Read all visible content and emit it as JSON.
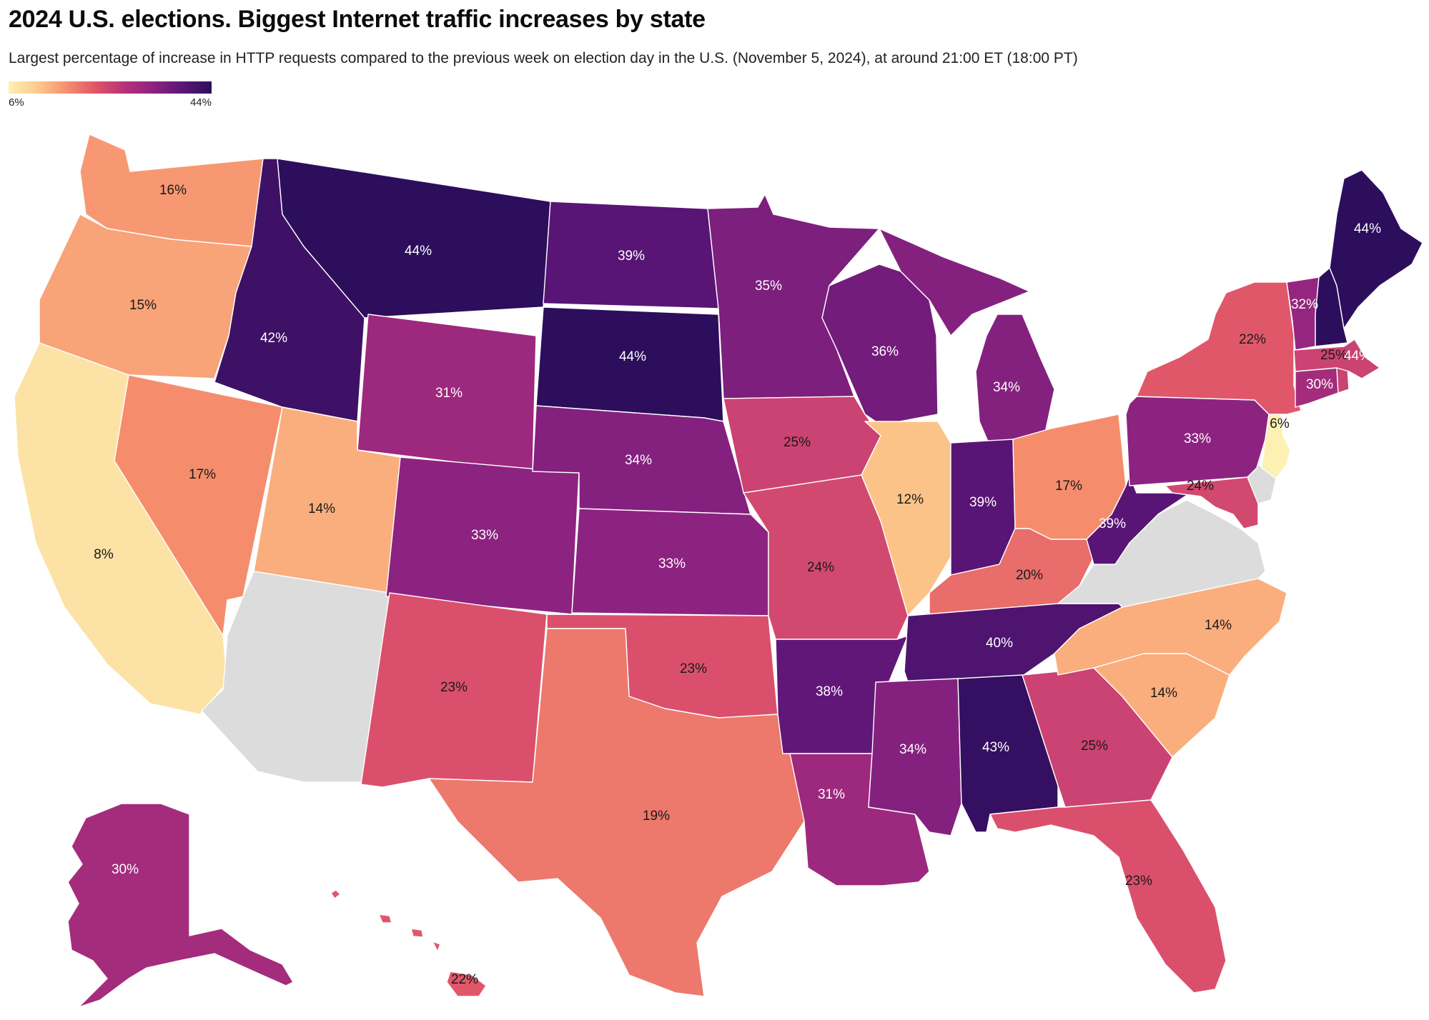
{
  "title": "2024 U.S. elections. Biggest Internet traffic increases by state",
  "subtitle": "Largest percentage of increase in HTTP requests compared to the previous week on election day in the U.S. (November 5, 2024), at around 21:00 ET (18:00 PT)",
  "legend": {
    "min_label": "6%",
    "max_label": "44%",
    "min_value": 6,
    "max_value": 44
  },
  "colors": {
    "no_data": "#dcdcdc",
    "scale": [
      "#fcf1b3",
      "#fdc98c",
      "#f68f6d",
      "#e0546a",
      "#b53279",
      "#8c2380",
      "#5c1677",
      "#2c0e5c"
    ]
  },
  "chart_data": {
    "type": "choropleth",
    "title": "2024 U.S. elections. Biggest Internet traffic increases by state",
    "unit": "%",
    "range": [
      6,
      44
    ],
    "states": [
      {
        "code": "WA",
        "value": 16,
        "label": "16%"
      },
      {
        "code": "OR",
        "value": 15,
        "label": "15%"
      },
      {
        "code": "CA",
        "value": 8,
        "label": "8%"
      },
      {
        "code": "NV",
        "value": 17,
        "label": "17%"
      },
      {
        "code": "ID",
        "value": 42,
        "label": "42%"
      },
      {
        "code": "MT",
        "value": 44,
        "label": "44%"
      },
      {
        "code": "WY",
        "value": 31,
        "label": "31%"
      },
      {
        "code": "UT",
        "value": 14,
        "label": "14%"
      },
      {
        "code": "AZ",
        "value": null,
        "label": ""
      },
      {
        "code": "CO",
        "value": 33,
        "label": "33%"
      },
      {
        "code": "NM",
        "value": 23,
        "label": "23%"
      },
      {
        "code": "ND",
        "value": 39,
        "label": "39%"
      },
      {
        "code": "SD",
        "value": 44,
        "label": "44%"
      },
      {
        "code": "NE",
        "value": 34,
        "label": "34%"
      },
      {
        "code": "KS",
        "value": 33,
        "label": "33%"
      },
      {
        "code": "OK",
        "value": 23,
        "label": "23%"
      },
      {
        "code": "TX",
        "value": 19,
        "label": "19%"
      },
      {
        "code": "MN",
        "value": 35,
        "label": "35%"
      },
      {
        "code": "IA",
        "value": 25,
        "label": "25%"
      },
      {
        "code": "MO",
        "value": 24,
        "label": "24%"
      },
      {
        "code": "AR",
        "value": 38,
        "label": "38%"
      },
      {
        "code": "LA",
        "value": 31,
        "label": "31%"
      },
      {
        "code": "WI",
        "value": 36,
        "label": "36%"
      },
      {
        "code": "IL",
        "value": 12,
        "label": "12%"
      },
      {
        "code": "MI",
        "value": 34,
        "label": "34%"
      },
      {
        "code": "IN",
        "value": 39,
        "label": "39%"
      },
      {
        "code": "OH",
        "value": 17,
        "label": "17%"
      },
      {
        "code": "KY",
        "value": 20,
        "label": "20%"
      },
      {
        "code": "TN",
        "value": 40,
        "label": "40%"
      },
      {
        "code": "MS",
        "value": 34,
        "label": "34%"
      },
      {
        "code": "AL",
        "value": 43,
        "label": "43%"
      },
      {
        "code": "GA",
        "value": 25,
        "label": "25%"
      },
      {
        "code": "FL",
        "value": 23,
        "label": "23%"
      },
      {
        "code": "SC",
        "value": 14,
        "label": "14%"
      },
      {
        "code": "NC",
        "value": 14,
        "label": "14%"
      },
      {
        "code": "VA",
        "value": null,
        "label": ""
      },
      {
        "code": "WV",
        "value": 39,
        "label": "39%"
      },
      {
        "code": "MD",
        "value": 24,
        "label": "24%"
      },
      {
        "code": "DE",
        "value": null,
        "label": ""
      },
      {
        "code": "PA",
        "value": 33,
        "label": "33%"
      },
      {
        "code": "NJ",
        "value": 6,
        "label": "6%"
      },
      {
        "code": "NY",
        "value": 22,
        "label": "22%"
      },
      {
        "code": "CT",
        "value": 30,
        "label": "30%"
      },
      {
        "code": "RI",
        "value": 25,
        "label": "25%"
      },
      {
        "code": "MA",
        "value": 25,
        "label": "25%"
      },
      {
        "code": "VT",
        "value": 32,
        "label": "32%"
      },
      {
        "code": "NH",
        "value": 44,
        "label": "44%"
      },
      {
        "code": "ME",
        "value": 44,
        "label": "44%"
      },
      {
        "code": "AK",
        "value": 30,
        "label": "30%"
      },
      {
        "code": "HI",
        "value": 22,
        "label": "22%"
      }
    ]
  }
}
